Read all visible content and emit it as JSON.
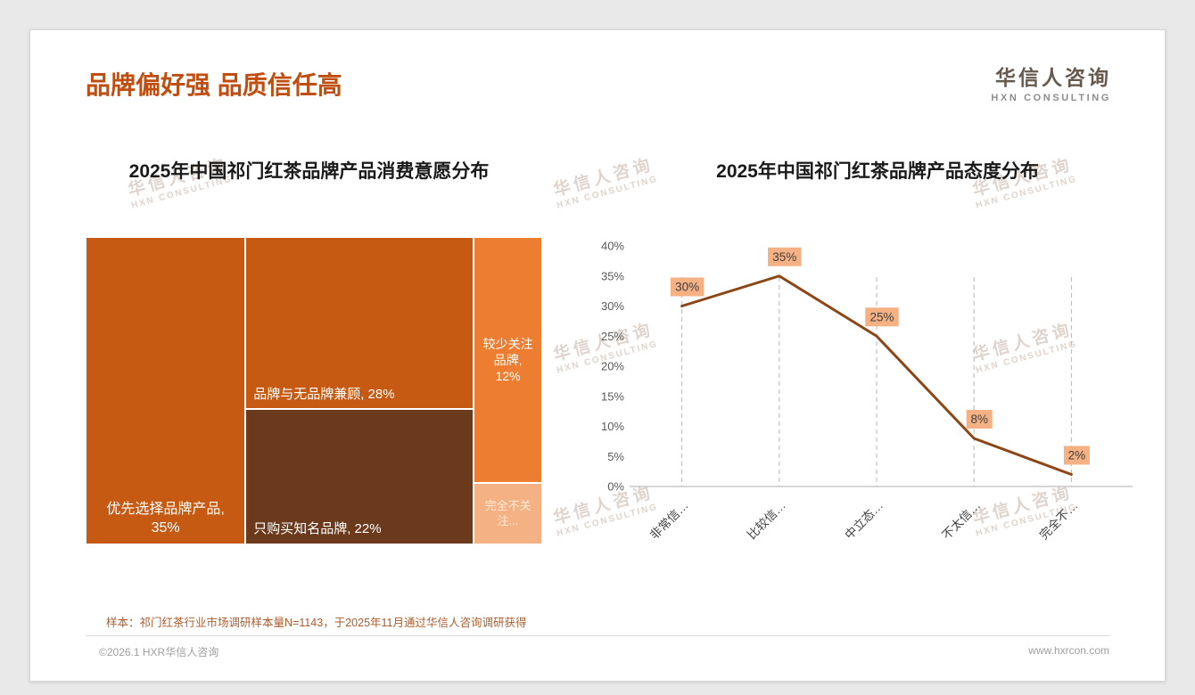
{
  "header": {
    "title": "品牌偏好强 品质信任高",
    "logo_cn": "华信人咨询",
    "logo_en": "HXN CONSULTING"
  },
  "watermark": {
    "line1": "华信人咨询",
    "line2": "HXN CONSULTING"
  },
  "footer": {
    "sample_note": "样本：祁门红茶行业市场调研样本量N=1143，于2025年11月通过华信人咨询调研获得",
    "copyright": "©2026.1 HXR华信人咨询",
    "website": "www.hxrcon.com"
  },
  "colors": {
    "accent": "#bf4e10",
    "treemap_dark_orange": "#c65a12",
    "treemap_brown": "#6b3a1d",
    "treemap_orange": "#ed7d31",
    "treemap_peach": "#f4b183",
    "line": "#8c4616",
    "label_bg": "#f5b183",
    "axis_text": "#595959"
  },
  "chart_data": [
    {
      "type": "treemap",
      "title": "2025年中国祁门红茶品牌产品消费意愿分布",
      "items": [
        {
          "label": "优先选择品牌产品, 35%",
          "value": 35,
          "color": "#c65a12",
          "text_color": "#ffffff"
        },
        {
          "label": "品牌与无品牌兼顾, 28%",
          "value": 28,
          "color": "#c65a12",
          "text_color": "#ffffff"
        },
        {
          "label": "只购买知名品牌, 22%",
          "value": 22,
          "color": "#6b3a1d",
          "text_color": "#ffffff"
        },
        {
          "label": "较少关注品牌, 12%",
          "value": 12,
          "color": "#ed7d31",
          "text_color": "#ffffff"
        },
        {
          "label": "完全不关注...",
          "value": 3,
          "color": "#f4b183",
          "text_color": "#fdebd9"
        }
      ]
    },
    {
      "type": "line",
      "title": "2025年中国祁门红茶品牌产品态度分布",
      "categories": [
        "非常信…",
        "比较信…",
        "中立态…",
        "不太信…",
        "完全不…"
      ],
      "values": [
        30,
        35,
        25,
        8,
        2
      ],
      "point_labels": [
        "30%",
        "35%",
        "25%",
        "8%",
        "2%"
      ],
      "ylim": [
        0,
        40
      ],
      "ytick_step": 5,
      "ytick_labels": [
        "0%",
        "5%",
        "10%",
        "15%",
        "20%",
        "25%",
        "30%",
        "35%",
        "40%"
      ],
      "grid": "dashed-vertical",
      "legend": "none"
    }
  ]
}
